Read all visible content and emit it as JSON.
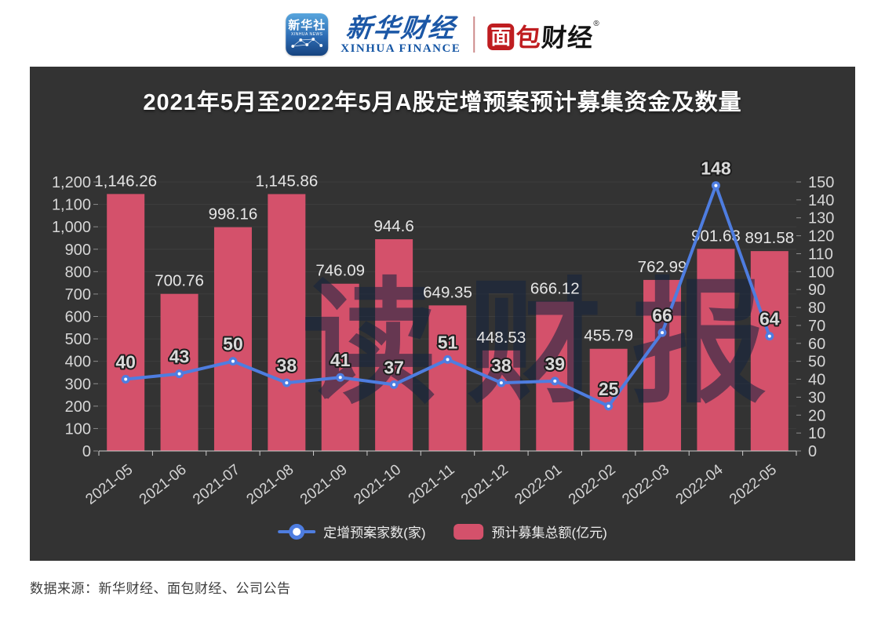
{
  "header": {
    "xinhua_icon": {
      "title": "新华社",
      "subtitle": "XINHUA NEWS"
    },
    "xinhua_finance": {
      "brand": "新华财经",
      "subtitle": "XINHUA FINANCE"
    },
    "bread_finance": {
      "char_boxed": "面",
      "char_red": "包",
      "chars_black": "财经",
      "reg_mark": "®"
    }
  },
  "chart": {
    "title": "2021年5月至2022年5月A股定增预案预计募集资金及数量",
    "watermark": "读财报"
  },
  "legend": {
    "line_label": "定增预案家数(家)",
    "bar_label": "预计募集总额(亿元)"
  },
  "footer": {
    "source": "数据来源：新华财经、面包财经、公司公告"
  },
  "colors": {
    "bar": "#d4516b",
    "line": "#4e7de0",
    "panel_bg": "#333333",
    "border_blue": "#1e4e8f",
    "border_red": "#b5151c",
    "axis_text": "#d6d6d6",
    "grid": "#3e3e3e",
    "watermark": "#17243e"
  },
  "chart_data": {
    "type": "bar",
    "title": "2021年5月至2022年5月A股定增预案预计募集资金及数量",
    "categories": [
      "2021-05",
      "2021-06",
      "2021-07",
      "2021-08",
      "2021-09",
      "2021-10",
      "2021-11",
      "2021-12",
      "2022-01",
      "2022-02",
      "2022-03",
      "2022-04",
      "2022-05"
    ],
    "series": [
      {
        "name": "预计募集总额(亿元)",
        "type": "bar",
        "axis": "left",
        "values": [
          1146.26,
          700.76,
          998.16,
          1145.86,
          746.09,
          944.6,
          649.35,
          448.53,
          666.12,
          455.79,
          762.99,
          901.63,
          891.58
        ],
        "labels": [
          "1,146.26",
          "700.76",
          "998.16",
          "1,145.86",
          "746.09",
          "944.6",
          "649.35",
          "448.53",
          "666.12",
          "455.79",
          "762.99",
          "901.63",
          "891.58"
        ]
      },
      {
        "name": "定增预案家数(家)",
        "type": "line",
        "axis": "right",
        "values": [
          40,
          43,
          50,
          38,
          41,
          37,
          51,
          38,
          39,
          25,
          66,
          148,
          64
        ]
      }
    ],
    "left_axis": {
      "min": 0,
      "max": 1200,
      "step": 100
    },
    "right_axis": {
      "min": 0,
      "max": 150,
      "step": 10
    },
    "grid": true,
    "legend_position": "bottom"
  }
}
